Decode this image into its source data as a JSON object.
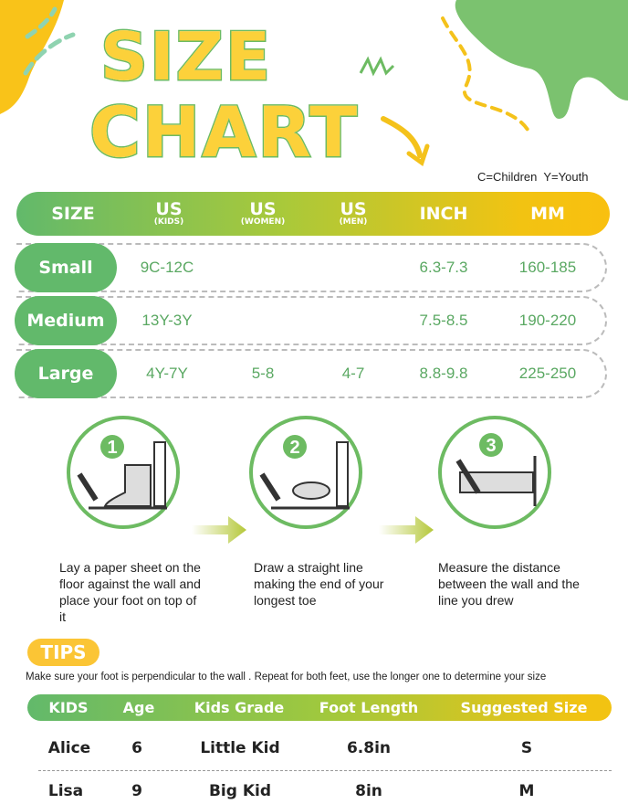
{
  "title": {
    "line1": "SIZE",
    "line2": "CHART"
  },
  "legend": "C=Children  Y=Youth",
  "colors": {
    "green": "#62b96b",
    "yellow": "#f9c00f",
    "value_text": "#5aa862"
  },
  "size_table": {
    "headers": [
      {
        "main": "SIZE",
        "sub": ""
      },
      {
        "main": "US",
        "sub": "(KIDS)"
      },
      {
        "main": "US",
        "sub": "(WOMEN)"
      },
      {
        "main": "US",
        "sub": "(MEN)"
      },
      {
        "main": "INCH",
        "sub": ""
      },
      {
        "main": "MM",
        "sub": ""
      }
    ],
    "rows": [
      {
        "size": "Small",
        "kids": "9C-12C",
        "women": "",
        "men": "",
        "inch": "6.3-7.3",
        "mm": "160-185"
      },
      {
        "size": "Medium",
        "kids": "13Y-3Y",
        "women": "",
        "men": "",
        "inch": "7.5-8.5",
        "mm": "190-220"
      },
      {
        "size": "Large",
        "kids": "4Y-7Y",
        "women": "5-8",
        "men": "4-7",
        "inch": "8.8-9.8",
        "mm": "225-250"
      }
    ]
  },
  "steps": [
    {
      "number": "1",
      "text": "Lay a paper sheet on the floor against the wall and place your foot on top of it"
    },
    {
      "number": "2",
      "text": "Draw a straight line making the end of your longest toe"
    },
    {
      "number": "3",
      "text": "Measure the distance between the wall and the line you drew"
    }
  ],
  "tips": {
    "label": "TIPS",
    "text": "Make sure your foot is perpendicular to the wall . Repeat for both feet, use the longer one to determine your size"
  },
  "kids_table": {
    "headers": [
      "KIDS",
      "Age",
      "Kids Grade",
      "Foot Length",
      "Suggested Size"
    ],
    "rows": [
      {
        "name": "Alice",
        "age": "6",
        "grade": "Little Kid",
        "length": "6.8in",
        "size": "S"
      },
      {
        "name": "Lisa",
        "age": "9",
        "grade": "Big Kid",
        "length": "8in",
        "size": "M"
      }
    ]
  }
}
